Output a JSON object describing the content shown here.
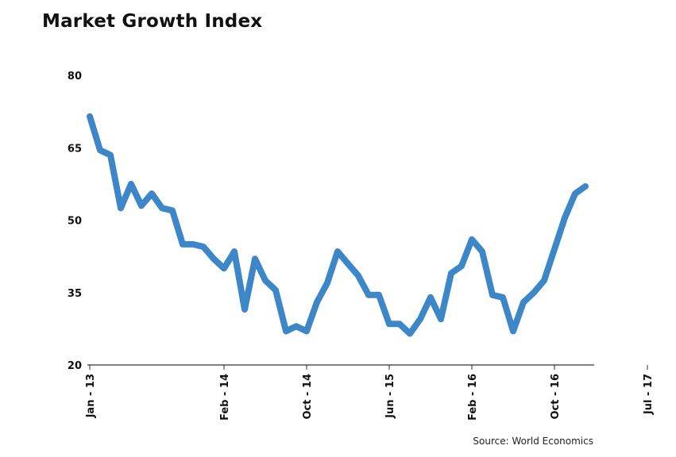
{
  "chart_data": {
    "type": "line",
    "title": "Market Growth Index",
    "source": "Source: World Economics",
    "xlabel": "",
    "ylabel": "",
    "ylim": [
      20,
      80
    ],
    "yticks": [
      20,
      35,
      50,
      65,
      80
    ],
    "grid": false,
    "x_tick_labels": [
      {
        "index": 0,
        "label": "Jan - 13"
      },
      {
        "index": 13,
        "label": "Feb - 14"
      },
      {
        "index": 21,
        "label": "Oct - 14"
      },
      {
        "index": 29,
        "label": "Jun - 15"
      },
      {
        "index": 37,
        "label": "Feb - 16"
      },
      {
        "index": 45,
        "label": "Oct - 16"
      },
      {
        "index": 54,
        "label": "Jul - 17"
      }
    ],
    "series": [
      {
        "color": "#3d87c8",
        "values": [
          71.5,
          64.5,
          63.5,
          52.5,
          57.5,
          53.0,
          55.5,
          52.5,
          52.0,
          45.0,
          45.0,
          44.5,
          42.0,
          40.0,
          43.5,
          31.5,
          42.0,
          37.5,
          35.5,
          27.0,
          28.0,
          27.0,
          33.0,
          37.0,
          43.5,
          41.0,
          38.5,
          34.5,
          34.5,
          28.5,
          28.5,
          26.5,
          29.5,
          34.0,
          29.5,
          39.0,
          40.5,
          46.0,
          43.5,
          34.5,
          34.0,
          27.0,
          33.0,
          35.0,
          37.5,
          44.0,
          50.5,
          55.5,
          57.0
        ]
      }
    ]
  }
}
